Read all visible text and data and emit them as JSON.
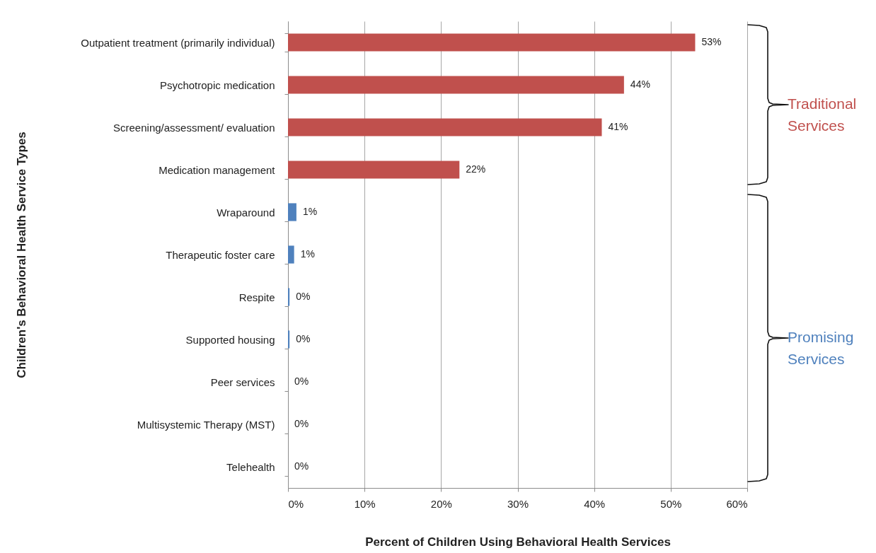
{
  "chart_data": {
    "type": "bar",
    "orientation": "horizontal",
    "xlabel": "Percent of Children Using Behavioral Health Services",
    "ylabel": "Children's Behavioral Health Service Types",
    "categories": [
      "Outpatient treatment (primarily individual)",
      "Psychotropic medication",
      "Screening/assessment/ evaluation",
      "Medication management",
      "Wraparound",
      "Therapeutic foster care",
      "Respite",
      "Supported housing",
      "Peer services",
      "Multisystemic Therapy (MST)",
      "Telehealth"
    ],
    "values": [
      53.2,
      43.9,
      41.0,
      22.4,
      1.1,
      0.8,
      0.2,
      0.2,
      0,
      0,
      0
    ],
    "colors": [
      "#c0504d",
      "#c0504d",
      "#c0504d",
      "#c0504d",
      "#4f81bd",
      "#4f81bd",
      "#4f81bd",
      "#4f81bd",
      "#4f81bd",
      "#4f81bd",
      "#4f81bd"
    ],
    "value_labels": [
      "53%",
      "44%",
      "41%",
      "22%",
      "1%",
      "1%",
      "0%",
      "0%",
      "0%",
      "0%",
      "0%"
    ],
    "xlim": [
      0,
      60
    ],
    "xticks": [
      {
        "value": 0,
        "label": "0%"
      },
      {
        "value": 10,
        "label": "10%"
      },
      {
        "value": 20,
        "label": "20%"
      },
      {
        "value": 30,
        "label": "30%"
      },
      {
        "value": 40,
        "label": "40%"
      },
      {
        "value": 50,
        "label": "50%"
      },
      {
        "value": 60,
        "label": "60%"
      }
    ],
    "grid": "x",
    "annotations": [
      "Traditional Services",
      "Promising Services"
    ]
  }
}
